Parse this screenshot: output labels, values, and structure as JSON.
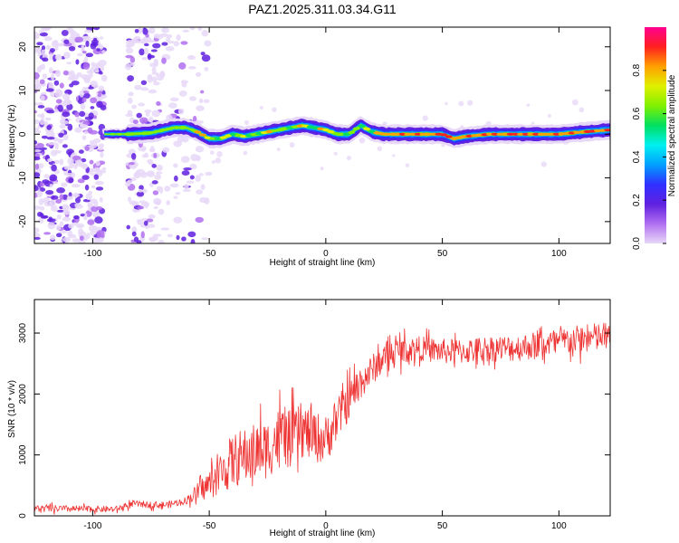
{
  "figure": {
    "title": "PAZ1.2025.311.03.34.G11"
  },
  "chart_data": [
    {
      "type": "heatmap",
      "xlabel": "Height of straight line (km)",
      "ylabel": "Frequency (Hz)",
      "xlim": [
        -125,
        122
      ],
      "ylim": [
        -25,
        24.5
      ],
      "xticks": [
        "-100",
        "-50",
        "0",
        "50",
        "100"
      ],
      "xtick_values": [
        -100,
        -50,
        0,
        50,
        100
      ],
      "yticks": [
        "-20",
        "-10",
        "0",
        "10",
        "20"
      ],
      "ytick_values": [
        -20,
        -10,
        0,
        10,
        20
      ],
      "grid": false,
      "colorbar": {
        "label": "Normalized spectral amplitude",
        "range": [
          0,
          1
        ],
        "ticks": [
          "0.0",
          "0.2",
          "0.4",
          "0.6",
          "0.8"
        ],
        "tick_values": [
          0,
          0.2,
          0.4,
          0.6,
          0.8
        ],
        "colormap": [
          "#e8d8f8",
          "#b070f0",
          "#6020e0",
          "#3030ff",
          "#00a0ff",
          "#00f0f0",
          "#00e060",
          "#80f000",
          "#e0f000",
          "#ffa000",
          "#ff2020",
          "#ff0090"
        ]
      },
      "signal_ridge": {
        "description_units": "frequency offset in Hz vs height in km",
        "x": [
          -95,
          -85,
          -75,
          -65,
          -60,
          -55,
          -50,
          -45,
          -40,
          -35,
          -30,
          -25,
          -20,
          -15,
          -10,
          -5,
          0,
          5,
          10,
          15,
          20,
          25,
          30,
          40,
          50,
          55,
          60,
          70,
          80,
          90,
          100,
          110,
          122
        ],
        "y": [
          0,
          0,
          0.3,
          1.5,
          1.5,
          0.5,
          -1,
          -1,
          0,
          -0.5,
          0,
          0.5,
          1,
          1.5,
          2,
          1.5,
          1,
          0,
          0,
          2,
          0.5,
          0,
          0,
          0,
          0,
          -1,
          -0.5,
          0,
          0,
          0,
          0,
          0.5,
          1
        ],
        "peak_amplitude": 0.85
      },
      "noise_region_x": [
        -125,
        -50
      ]
    },
    {
      "type": "line",
      "xlabel": "Height of straight line (km)",
      "ylabel": "SNR (10 * v/v)",
      "xlim": [
        -125,
        122
      ],
      "ylim": [
        0,
        3550
      ],
      "xticks": [
        "-100",
        "-50",
        "0",
        "50",
        "100"
      ],
      "xtick_values": [
        -100,
        -50,
        0,
        50,
        100
      ],
      "yticks": [
        "0",
        "1000",
        "2000",
        "3000"
      ],
      "ytick_values": [
        0,
        1000,
        2000,
        3000
      ],
      "grid": false,
      "series": [
        {
          "color": "#ee3333",
          "trend_x": [
            -125,
            -100,
            -90,
            -82,
            -75,
            -68,
            -60,
            -50,
            -40,
            -30,
            -25,
            -20,
            -15,
            -10,
            -5,
            0,
            5,
            10,
            15,
            20,
            25,
            30,
            40,
            50,
            60,
            70,
            80,
            90,
            100,
            110,
            122
          ],
          "trend_y": [
            120,
            110,
            110,
            200,
            180,
            180,
            250,
            520,
            900,
            1050,
            1100,
            1300,
            1250,
            1400,
            1300,
            1250,
            1600,
            1900,
            2200,
            2400,
            2600,
            2700,
            2750,
            2700,
            2700,
            2750,
            2750,
            2800,
            2850,
            2900,
            2950
          ],
          "noise_amplitude_x": [
            -125,
            -90,
            -60,
            -50,
            -40,
            -20,
            0,
            20,
            40,
            80,
            122
          ],
          "noise_amplitude_y": [
            60,
            50,
            60,
            250,
            450,
            500,
            400,
            250,
            200,
            220,
            250
          ]
        }
      ]
    }
  ]
}
